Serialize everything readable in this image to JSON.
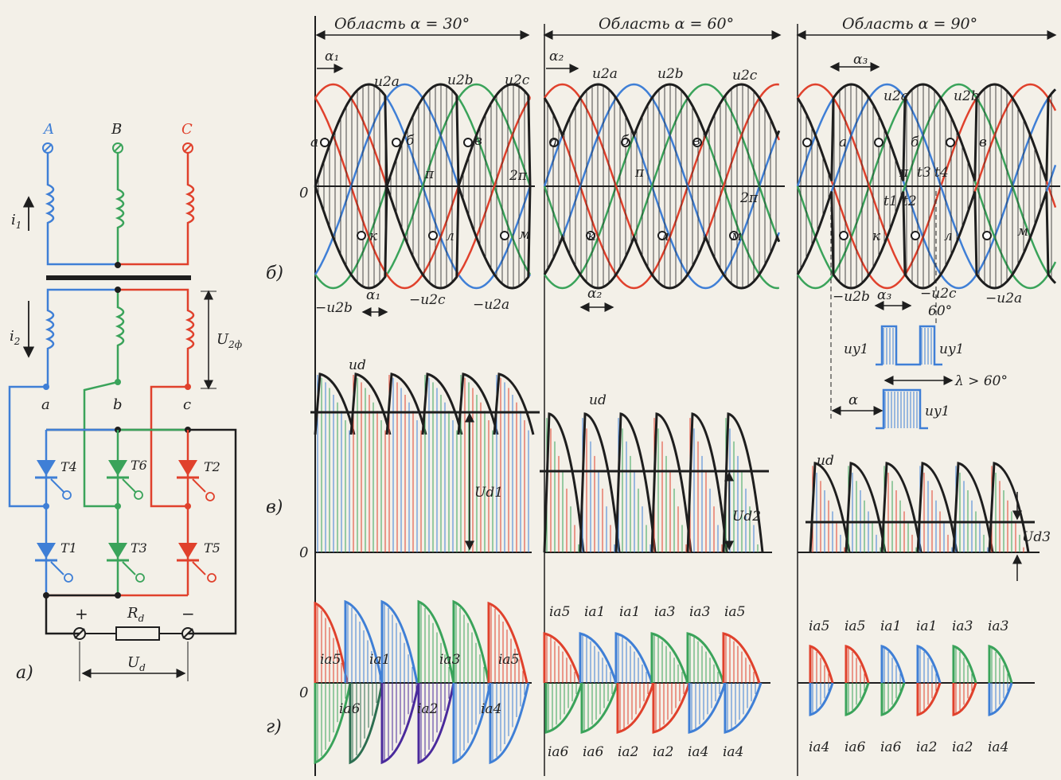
{
  "circuit": {
    "phase_in": [
      "A",
      "B",
      "C"
    ],
    "phase_out": [
      "a",
      "b",
      "c"
    ],
    "current_primary": "i",
    "current_primary_sub": "1",
    "current_secondary": "i",
    "current_secondary_sub": "2",
    "voltage_phase": "U",
    "voltage_phase_sub": "2ф",
    "load": "R",
    "load_sub": "d",
    "output_voltage": "U",
    "output_voltage_sub": "d",
    "plus": "+",
    "minus": "−",
    "thyristors": [
      "T4",
      "T6",
      "T2",
      "T1",
      "T3",
      "T5"
    ],
    "caption": "а)"
  },
  "panels": [
    {
      "title": "Область α = 30°",
      "alpha_label": "α₁",
      "alpha_label_bottom": "α₁"
    },
    {
      "title": "Область α = 60°",
      "alpha_label": "α₂",
      "alpha_label_bottom": "α₂"
    },
    {
      "title": "Область α = 90°",
      "alpha_label": "α₃",
      "alpha_label_bottom": "α₃"
    }
  ],
  "voltage_labels": {
    "top": [
      "u2a",
      "u2b",
      "u2c"
    ],
    "bottom": [
      "−u2b",
      "−u2c",
      "−u2a"
    ],
    "points_top": [
      "а",
      "б",
      "в"
    ],
    "points_bottom": [
      "к",
      "л",
      "м"
    ],
    "pi": "π",
    "two_pi": "2π",
    "origin": "0",
    "times": [
      "t1",
      "t2",
      "t3",
      "t4"
    ]
  },
  "pulses": {
    "label": "uy1",
    "sixty": "60°",
    "lambda": "λ > 60°",
    "alpha": "α"
  },
  "rectified": {
    "ud": "ud",
    "Ud_labels": [
      "Ud1",
      "Ud2",
      "Ud3"
    ],
    "origin": "0"
  },
  "currents": {
    "panel1_top": [
      "ia5",
      "ia1",
      "ia3",
      "ia5"
    ],
    "panel1_bottom": [
      "ia6",
      "ia2",
      "ia4"
    ],
    "panel2_top": [
      "ia5",
      "ia1",
      "ia1",
      "ia3",
      "ia3",
      "ia5"
    ],
    "panel2_bottom": [
      "ia6",
      "ia6",
      "ia2",
      "ia2",
      "ia4",
      "ia4"
    ],
    "panel3_top": [
      "ia5",
      "ia5",
      "ia1",
      "ia1",
      "ia3",
      "ia3"
    ],
    "panel3_bottom": [
      "ia4",
      "ia6",
      "ia6",
      "ia2",
      "ia2",
      "ia4"
    ],
    "origin": "0"
  },
  "row_captions": [
    "б)",
    "в)",
    "г)"
  ],
  "colors": {
    "phase_a": "#3f7fd6",
    "phase_b": "#3aa35a",
    "phase_c": "#e0412c",
    "ink": "#1e1e1e"
  }
}
